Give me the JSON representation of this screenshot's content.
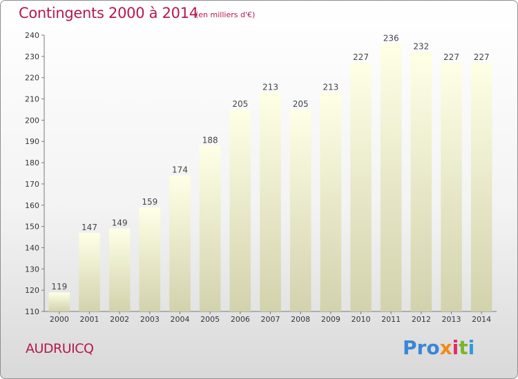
{
  "header": {
    "title": "Contingents 2000 à 2014",
    "subtitle": "(en milliers d'€)"
  },
  "footer": {
    "commune": "AUDRUICQ",
    "logo": [
      "Pro",
      "x",
      "i",
      "t",
      "i"
    ]
  },
  "colors": {
    "accent": "#b5174f",
    "bar_top": "#ffffe6",
    "bar_bottom": "#d2d2ad"
  },
  "chart_data": {
    "type": "bar",
    "categories": [
      "2000",
      "2001",
      "2002",
      "2003",
      "2004",
      "2005",
      "2006",
      "2007",
      "2008",
      "2009",
      "2010",
      "2011",
      "2012",
      "2013",
      "2014"
    ],
    "values": [
      119,
      147,
      149,
      159,
      174,
      188,
      205,
      213,
      205,
      213,
      227,
      236,
      232,
      227,
      227
    ],
    "title": "Contingents 2000 à 2014",
    "subtitle": "(en milliers d'€)",
    "ylim": [
      110,
      240
    ],
    "yticks": [
      110,
      120,
      130,
      140,
      150,
      160,
      170,
      180,
      190,
      200,
      210,
      220,
      230,
      240
    ],
    "grid": false
  }
}
